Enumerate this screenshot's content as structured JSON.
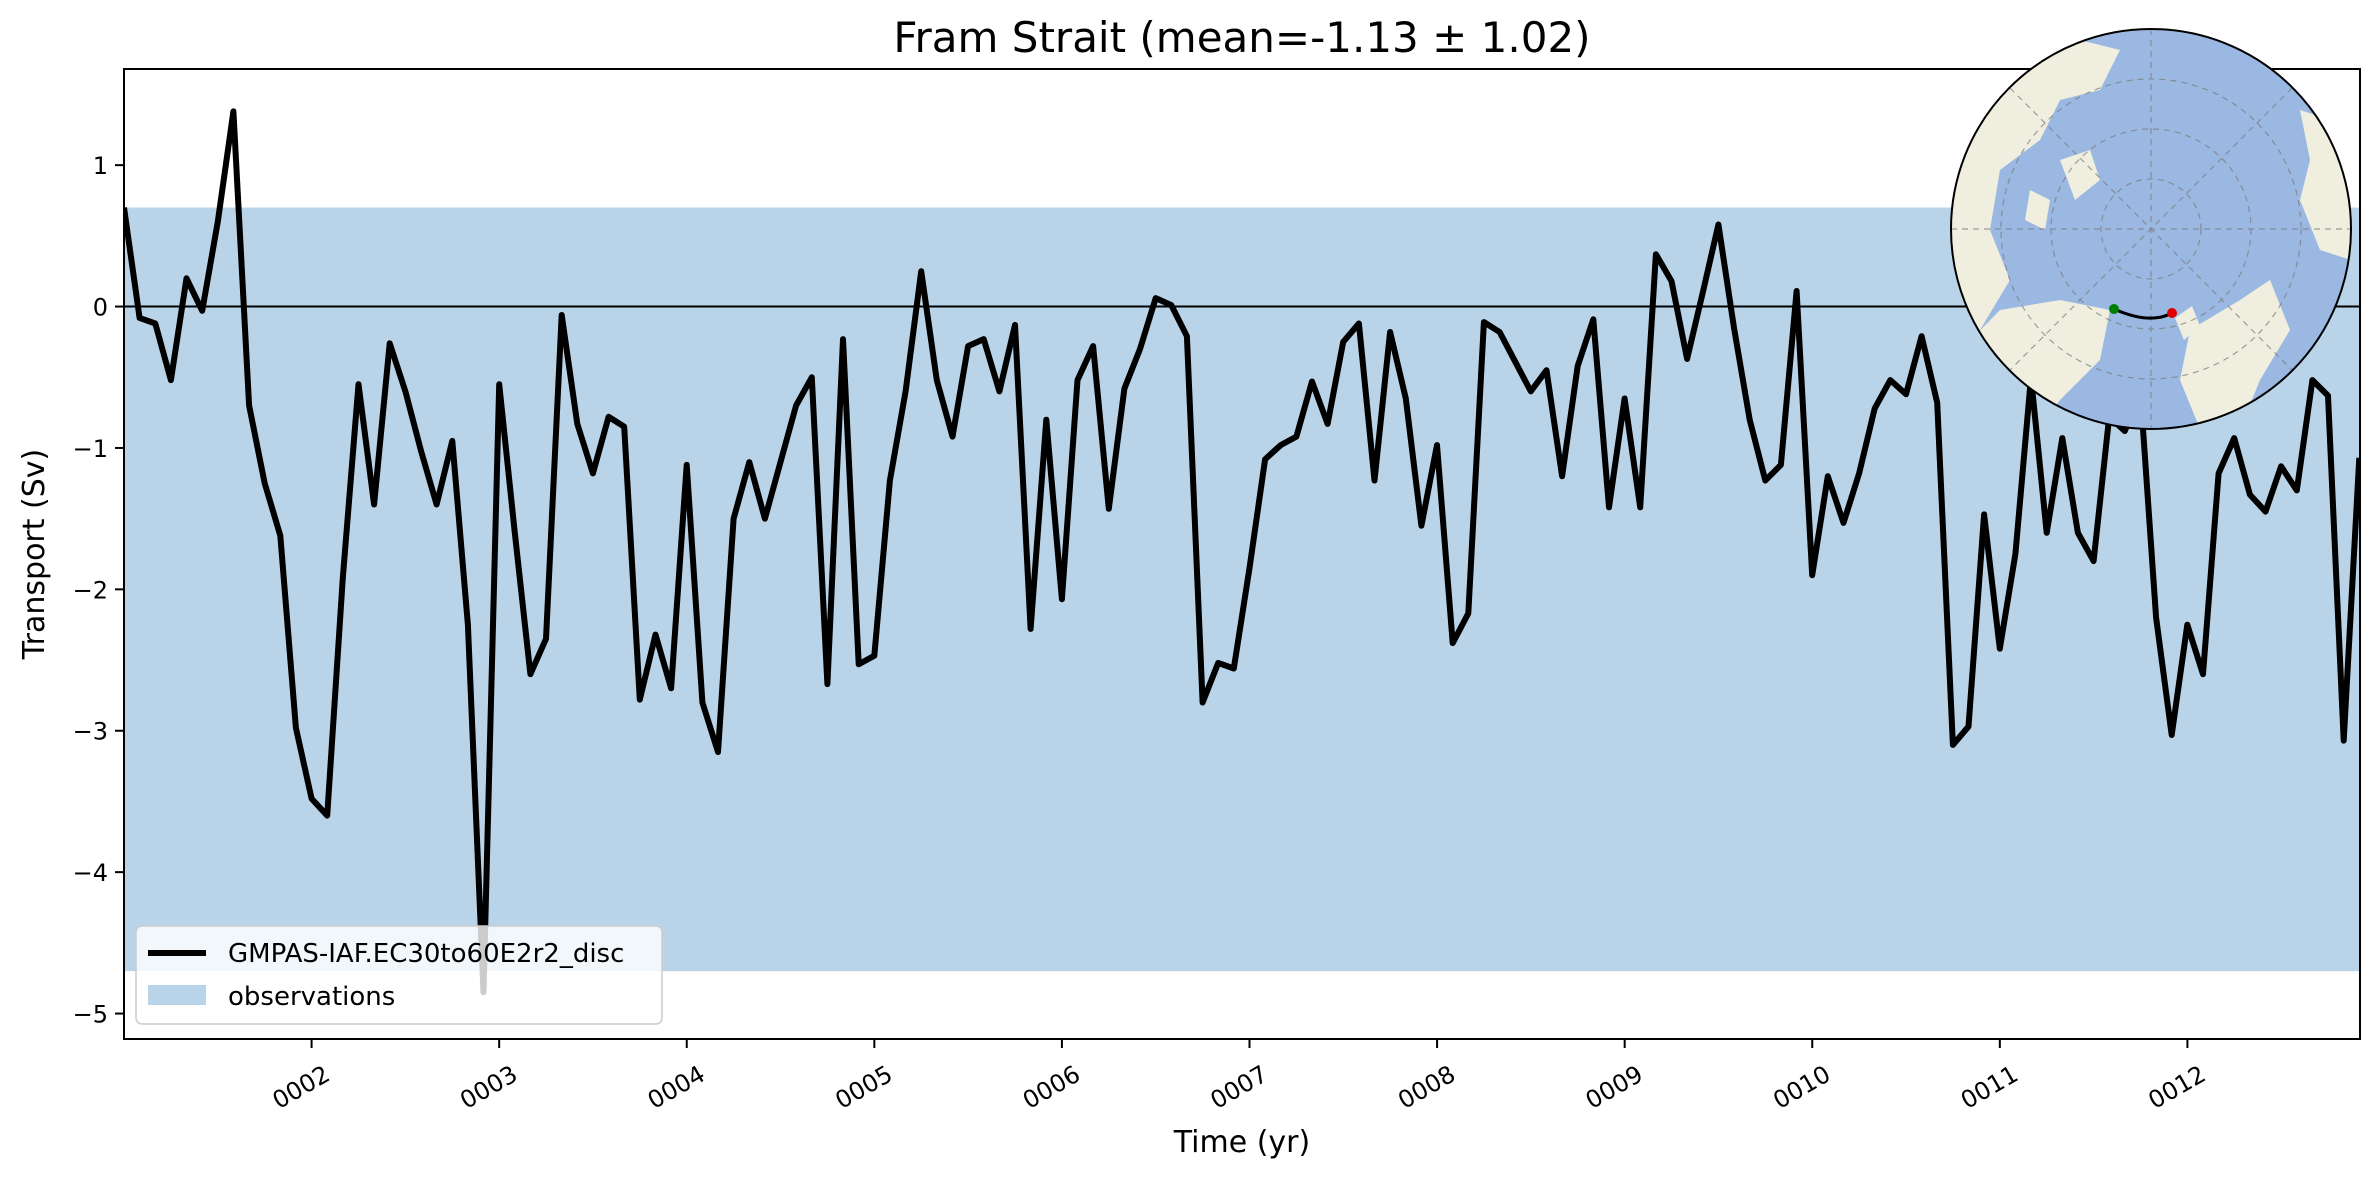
{
  "chart_data": {
    "type": "line",
    "title": "Fram Strait (mean=-1.13 ± 1.02)",
    "xlabel": "Time (yr)",
    "ylabel": "Transport (Sv)",
    "xlim": [
      1.0,
      12.92
    ],
    "ylim": [
      -5.18,
      1.68
    ],
    "x_tick_values": [
      2,
      3,
      4,
      5,
      6,
      7,
      8,
      9,
      10,
      11,
      12
    ],
    "x_tick_labels": [
      "0002",
      "0003",
      "0004",
      "0005",
      "0006",
      "0007",
      "0008",
      "0009",
      "0010",
      "0011",
      "0012"
    ],
    "y_tick_values": [
      1,
      0,
      -1,
      -2,
      -3,
      -4,
      -5
    ],
    "y_tick_labels": [
      "1",
      "0",
      "−1",
      "−2",
      "−3",
      "−4",
      "−5"
    ],
    "observations_band": [
      -4.7,
      0.7
    ],
    "series": [
      {
        "name": "GMPAS-IAF.EC30to60E2r2_disc",
        "color": "#000000",
        "x_start": 1.0,
        "x_step": 0.08333,
        "values": [
          0.7,
          -0.08,
          -0.12,
          -0.52,
          0.2,
          -0.03,
          0.6,
          1.38,
          -0.7,
          -1.25,
          -1.62,
          -2.98,
          -3.48,
          -3.6,
          -1.92,
          -0.55,
          -1.4,
          -0.26,
          -0.6,
          -1.02,
          -1.4,
          -0.95,
          -2.25,
          -4.85,
          -0.55,
          -1.6,
          -2.6,
          -2.35,
          -0.06,
          -0.83,
          -1.18,
          -0.78,
          -0.85,
          -2.78,
          -2.32,
          -2.7,
          -1.12,
          -2.8,
          -3.15,
          -1.5,
          -1.1,
          -1.5,
          -1.1,
          -0.7,
          -0.5,
          -2.67,
          -0.23,
          -2.53,
          -2.47,
          -1.23,
          -0.6,
          0.25,
          -0.52,
          -0.92,
          -0.28,
          -0.23,
          -0.6,
          -0.13,
          -2.28,
          -0.8,
          -2.07,
          -0.52,
          -0.28,
          -1.43,
          -0.58,
          -0.3,
          0.06,
          0.01,
          -0.21,
          -2.8,
          -2.52,
          -2.56,
          -1.85,
          -1.08,
          -0.98,
          -0.92,
          -0.53,
          -0.83,
          -0.25,
          -0.12,
          -1.23,
          -0.18,
          -0.65,
          -1.55,
          -0.98,
          -2.38,
          -2.17,
          -0.11,
          -0.18,
          -0.39,
          -0.6,
          -0.45,
          -1.2,
          -0.42,
          -0.09,
          -1.42,
          -0.65,
          -1.42,
          0.37,
          0.18,
          -0.37,
          0.1,
          0.58,
          -0.15,
          -0.8,
          -1.23,
          -1.12,
          0.11,
          -1.9,
          -1.2,
          -1.53,
          -1.18,
          -0.72,
          -0.52,
          -0.62,
          -0.21,
          -0.68,
          -3.1,
          -2.97,
          -1.47,
          -2.42,
          -1.75,
          -0.5,
          -1.6,
          -0.93,
          -1.6,
          -1.8,
          -0.78,
          -0.88,
          -0.6,
          -2.2,
          -3.03,
          -2.25,
          -2.6,
          -1.18,
          -0.93,
          -1.33,
          -1.45,
          -1.13,
          -1.3,
          -0.52,
          -0.63,
          -3.07,
          -1.07
        ]
      }
    ],
    "legend": {
      "position": "lower-left",
      "entries": [
        {
          "label": "GMPAS-IAF.EC30to60E2r2_disc",
          "kind": "line",
          "color": "#000000"
        },
        {
          "label": "observations",
          "kind": "patch",
          "color": "#b9d4e8"
        }
      ]
    },
    "zero_line": true,
    "grid": false
  },
  "colors": {
    "band": "#b9d4e8",
    "line": "#000000",
    "ocean": "#9bb8e2",
    "land": "#efeedf"
  },
  "inset_map": {
    "description_icon": "arctic-polar-map-icon",
    "start_marker_color": "#008000",
    "end_marker_color": "#e00000"
  }
}
